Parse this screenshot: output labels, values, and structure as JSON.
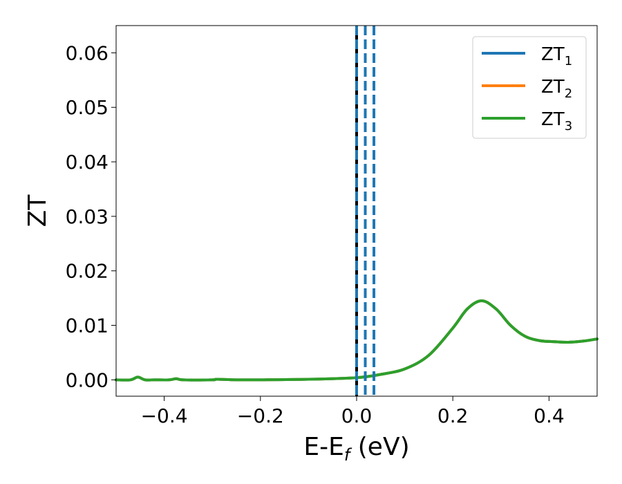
{
  "chart_data": {
    "type": "line",
    "xlabel": "E-E",
    "xlabel_sub": "f",
    "xlabel_unit": " (eV)",
    "ylabel": "ZT",
    "xlim": [
      -0.5,
      0.5
    ],
    "ylim": [
      -0.003,
      0.065
    ],
    "x_ticks": [
      -0.4,
      -0.2,
      0.0,
      0.2,
      0.4
    ],
    "x_tick_labels": [
      "−0.4",
      "−0.2",
      "0.0",
      "0.2",
      "0.4"
    ],
    "y_ticks": [
      0.0,
      0.01,
      0.02,
      0.03,
      0.04,
      0.05,
      0.06
    ],
    "y_tick_labels": [
      "0.00",
      "0.01",
      "0.02",
      "0.03",
      "0.04",
      "0.05",
      "0.06"
    ],
    "legend_position": "top-right",
    "series": [
      {
        "name": "ZT",
        "sub": "1",
        "color": "#1f77b4",
        "x": [
          -0.5,
          -0.47,
          -0.455,
          -0.44,
          -0.42,
          -0.39,
          -0.375,
          -0.36,
          -0.3,
          -0.29,
          -0.25,
          -0.2,
          -0.1,
          0.0,
          0.05,
          0.1,
          0.15,
          0.2,
          0.23,
          0.26,
          0.29,
          0.32,
          0.35,
          0.38,
          0.41,
          0.44,
          0.47,
          0.5
        ],
        "y": [
          0.0,
          0.0,
          0.0005,
          0.0,
          0.0,
          0.0,
          0.0002,
          0.0,
          0.0,
          0.0001,
          0.0,
          0.0,
          0.0001,
          0.0004,
          0.001,
          0.002,
          0.0045,
          0.0095,
          0.013,
          0.0145,
          0.013,
          0.01,
          0.008,
          0.0072,
          0.007,
          0.0069,
          0.0071,
          0.0075
        ]
      },
      {
        "name": "ZT",
        "sub": "2",
        "color": "#ff7f0e",
        "x": [
          -0.5,
          -0.47,
          -0.455,
          -0.44,
          -0.42,
          -0.39,
          -0.375,
          -0.36,
          -0.3,
          -0.29,
          -0.25,
          -0.2,
          -0.1,
          0.0,
          0.05,
          0.1,
          0.15,
          0.2,
          0.23,
          0.26,
          0.29,
          0.32,
          0.35,
          0.38,
          0.41,
          0.44,
          0.47,
          0.5
        ],
        "y": [
          0.0,
          0.0,
          0.0005,
          0.0,
          0.0,
          0.0,
          0.0002,
          0.0,
          0.0,
          0.0001,
          0.0,
          0.0,
          0.0001,
          0.0004,
          0.001,
          0.002,
          0.0045,
          0.0095,
          0.013,
          0.0145,
          0.013,
          0.01,
          0.008,
          0.0072,
          0.007,
          0.0069,
          0.0071,
          0.0075
        ]
      },
      {
        "name": "ZT",
        "sub": "3",
        "color": "#2ca02c",
        "x": [
          -0.5,
          -0.47,
          -0.455,
          -0.44,
          -0.42,
          -0.39,
          -0.375,
          -0.36,
          -0.3,
          -0.29,
          -0.25,
          -0.2,
          -0.1,
          0.0,
          0.05,
          0.1,
          0.15,
          0.2,
          0.23,
          0.26,
          0.29,
          0.32,
          0.35,
          0.38,
          0.41,
          0.44,
          0.47,
          0.5
        ],
        "y": [
          0.0,
          0.0,
          0.0005,
          0.0,
          0.0,
          0.0,
          0.0002,
          0.0,
          0.0,
          0.0001,
          0.0,
          0.0,
          0.0001,
          0.0004,
          0.001,
          0.002,
          0.0045,
          0.0095,
          0.013,
          0.0145,
          0.013,
          0.01,
          0.008,
          0.0072,
          0.007,
          0.0069,
          0.0071,
          0.0075
        ]
      }
    ],
    "vertical_lines": [
      {
        "x": 0.0,
        "color": "#000000",
        "style": "solid"
      },
      {
        "x": 0.0,
        "color": "#1f77b4",
        "style": "dashed"
      },
      {
        "x": 0.018,
        "color": "#1f77b4",
        "style": "dashed"
      },
      {
        "x": 0.036,
        "color": "#1f77b4",
        "style": "dashed"
      }
    ]
  }
}
